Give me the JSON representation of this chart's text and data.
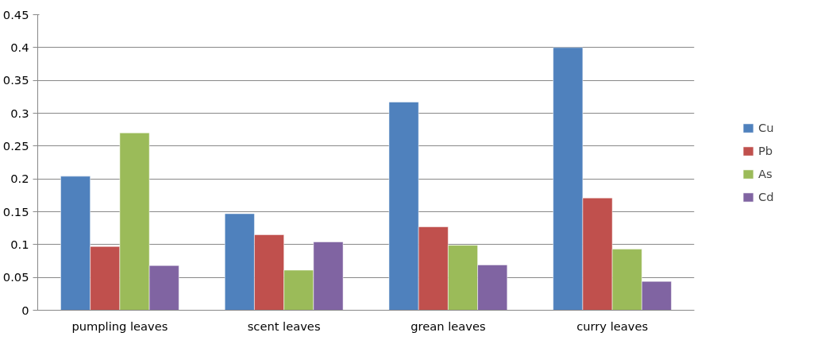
{
  "chart_data": {
    "type": "bar",
    "categories": [
      "pumpling leaves",
      "scent leaves",
      "grean leaves",
      "curry leaves"
    ],
    "series": [
      {
        "name": "Cu",
        "color": "#4f81bd",
        "values": [
          0.204,
          0.147,
          0.317,
          0.4
        ]
      },
      {
        "name": "Pb",
        "color": "#c0504d",
        "values": [
          0.097,
          0.115,
          0.127,
          0.171
        ]
      },
      {
        "name": "As",
        "color": "#9bbb59",
        "values": [
          0.27,
          0.061,
          0.099,
          0.093
        ]
      },
      {
        "name": "Cd",
        "color": "#8064a2",
        "values": [
          0.068,
          0.104,
          0.069,
          0.044
        ]
      }
    ],
    "ylim": [
      0,
      0.45
    ],
    "yticks": [
      0,
      0.05,
      0.1,
      0.15,
      0.2,
      0.25,
      0.3,
      0.35,
      0.4,
      0.45
    ],
    "grid": "y",
    "legend": "right"
  }
}
